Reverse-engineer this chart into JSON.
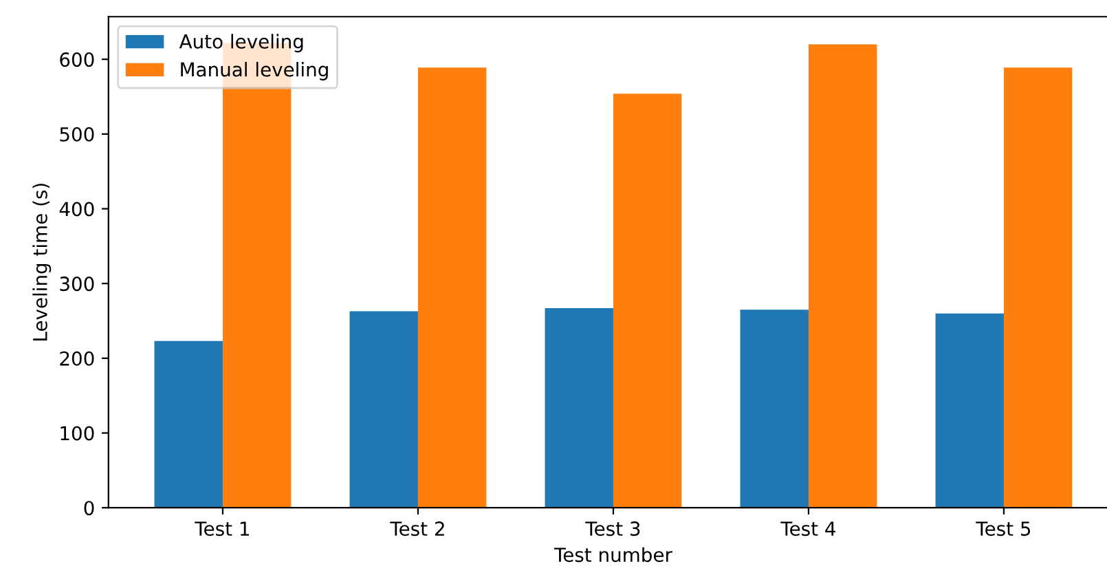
{
  "chart_data": {
    "type": "bar",
    "xlabel": "Test number",
    "ylabel": "Leveling time (s)",
    "categories": [
      "Test 1",
      "Test 2",
      "Test 3",
      "Test 4",
      "Test 5"
    ],
    "series": [
      {
        "name": "Auto leveling",
        "color": "#1f77b4",
        "values": [
          223,
          263,
          267,
          265,
          260
        ]
      },
      {
        "name": "Manual leveling",
        "color": "#ff7f0e",
        "values": [
          622,
          589,
          554,
          620,
          589
        ]
      }
    ],
    "ylim": [
      0,
      657
    ],
    "yticks": [
      0,
      100,
      200,
      300,
      400,
      500,
      600
    ],
    "grid": false,
    "legend": "top left"
  }
}
